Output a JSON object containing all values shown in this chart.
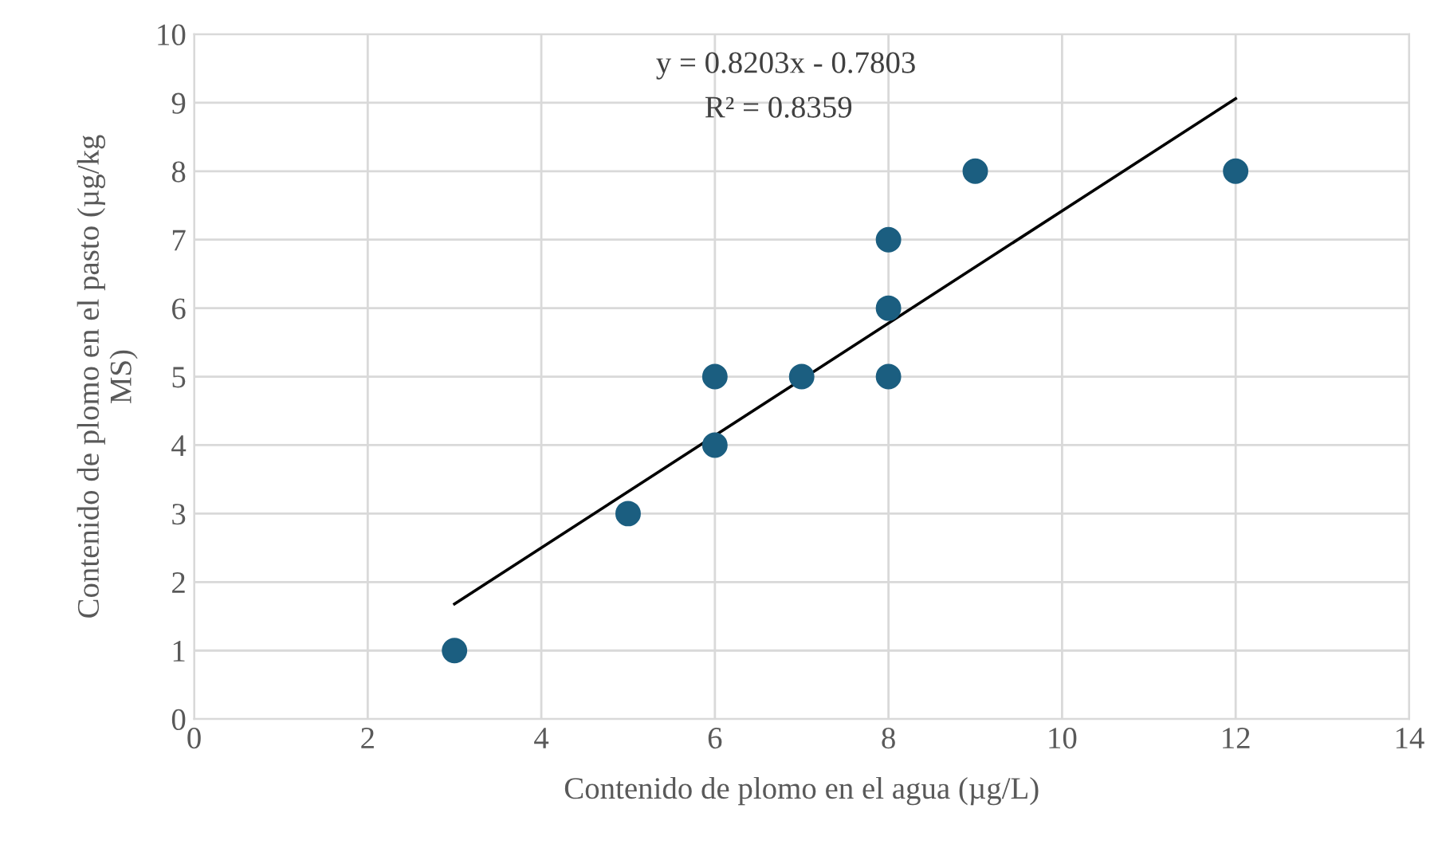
{
  "chart_data": {
    "type": "scatter",
    "xlabel": "Contenido de plomo en el agua (µg/L)",
    "ylabel": "Contenido de plomo en el pasto (µg/kg\nMS)",
    "annotations": [
      "y = 0.8203x - 0.7803",
      "R² = 0.8359"
    ],
    "series": [
      {
        "marker": "circle",
        "color": "#1b5e80",
        "x": [
          3,
          5,
          6,
          6,
          7,
          8,
          8,
          8,
          9,
          12
        ],
        "values": [
          1,
          3,
          4,
          5,
          5,
          5,
          6,
          7,
          8,
          8
        ]
      },
      {
        "type": "line",
        "marker": "none",
        "color": "#000000",
        "x": [
          3,
          12
        ],
        "values": [
          1.68,
          9.06
        ]
      }
    ],
    "xlim": [
      0,
      14
    ],
    "ylim": [
      0,
      10
    ],
    "xticks": [
      0,
      2,
      4,
      6,
      8,
      10,
      12,
      14
    ],
    "yticks": [
      0,
      1,
      2,
      3,
      4,
      5,
      6,
      7,
      8,
      9,
      10
    ],
    "grid": true
  }
}
